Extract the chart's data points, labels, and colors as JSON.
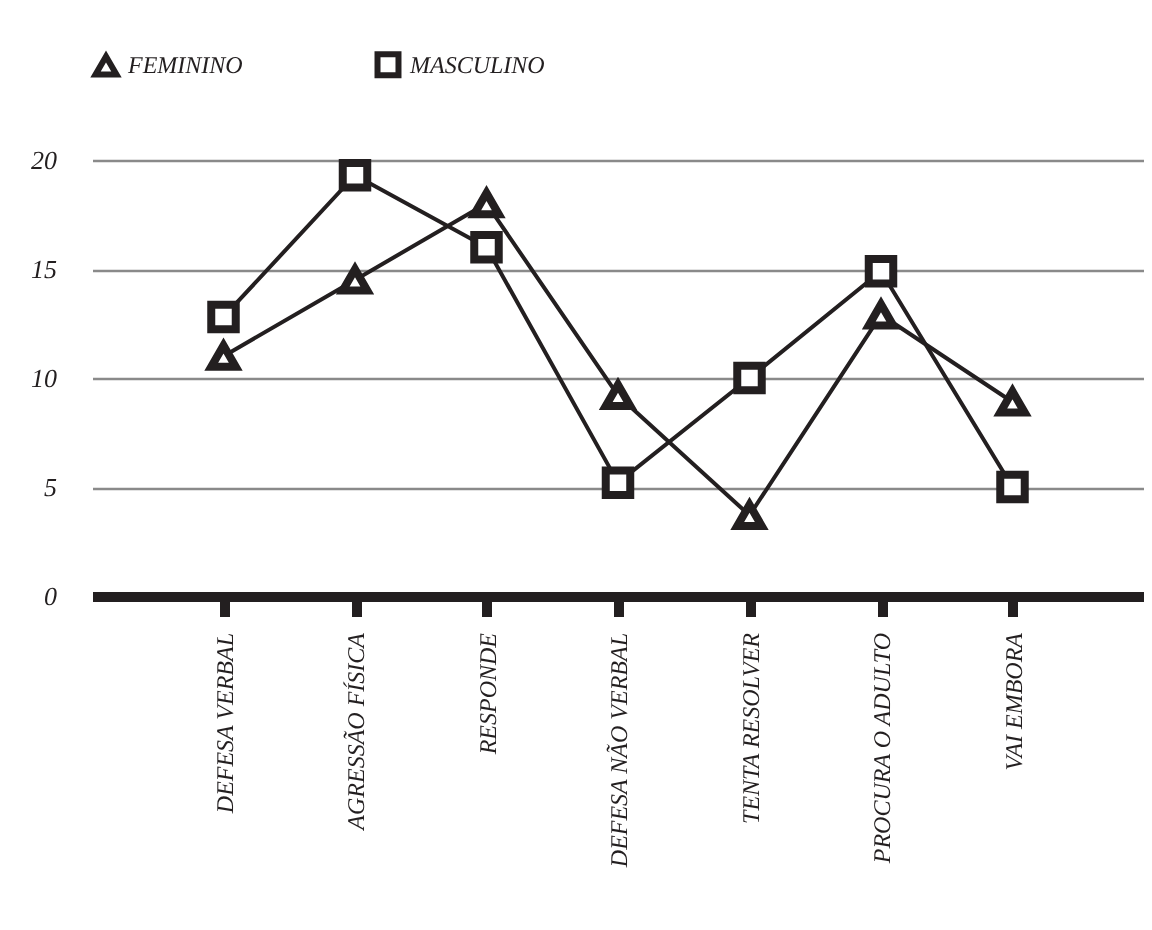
{
  "chart_data": {
    "type": "line",
    "categories": [
      "DEFESA VERBAL",
      "AGRESSÃO FÍSICA",
      "RESPONDE",
      "DEFESA NÃO VERBAL",
      "TENTA RESOLVER",
      "PROCURA O ADULTO",
      "VAI EMBORA"
    ],
    "series": [
      {
        "name": "FEMININO",
        "color": "#231f20",
        "marker": "triangle",
        "values": [
          11.0,
          14.5,
          18.0,
          9.2,
          3.7,
          12.9,
          8.9
        ]
      },
      {
        "name": "MASCULINO",
        "color": "#231f20",
        "marker": "square",
        "values": [
          12.8,
          19.3,
          16.0,
          5.2,
          10.0,
          14.9,
          5.0
        ]
      }
    ],
    "ylim": [
      0,
      20
    ],
    "yticks": [
      0,
      5,
      10,
      15,
      20
    ],
    "grid": "y",
    "legend": "top",
    "line_style": "solid"
  }
}
